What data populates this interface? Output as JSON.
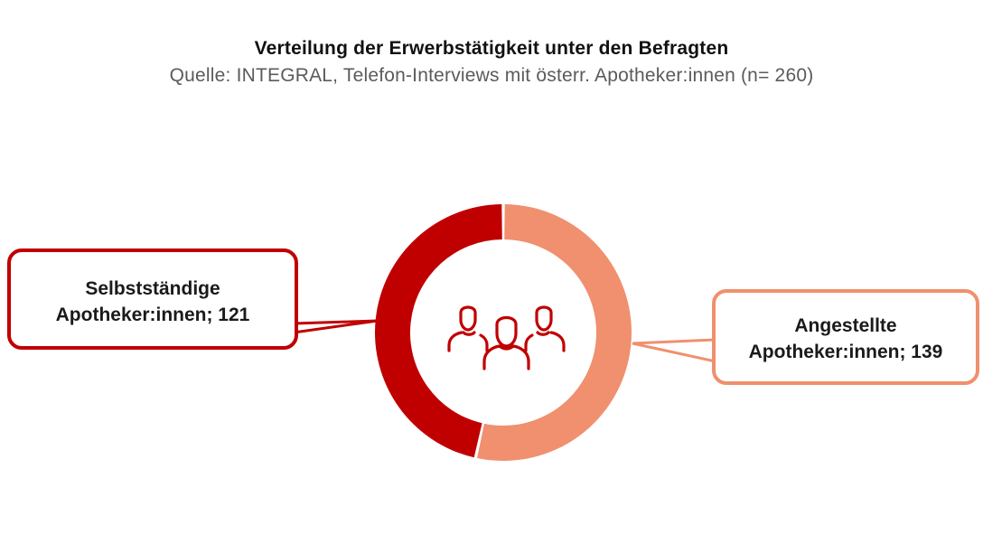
{
  "title": "Verteilung der Erwerbstätigkeit unter den Befragten",
  "subtitle": "Quelle: INTEGRAL, Telefon-Interviews mit österr. Apotheker:innen (n= 260)",
  "center_icon": "people-group-icon",
  "chart_data": {
    "type": "pie",
    "title": "Verteilung der Erwerbstätigkeit unter den Befragten",
    "subtitle": "Quelle: INTEGRAL, Telefon-Interviews mit österr. Apotheker:innen (n= 260)",
    "total": 260,
    "slices": [
      {
        "label_line1": "Selbstständige",
        "label_line2": "Apotheker:innen; 121",
        "category": "Selbstständige Apotheker:innen",
        "value": 121,
        "color": "#c00000"
      },
      {
        "label_line1": "Angestellte",
        "label_line2": "Apotheker:innen; 139",
        "category": "Angestellte Apotheker:innen",
        "value": 139,
        "color": "#f0906e"
      }
    ],
    "legend": "callouts"
  }
}
